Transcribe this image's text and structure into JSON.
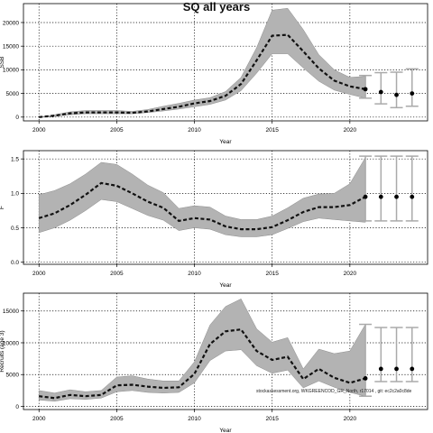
{
  "title": "SQ all years",
  "footnote": "stockassessment.org, WKGREENCOD_GR_North, r17014 , git: ec2c2a0c8de",
  "chart_data": [
    {
      "type": "line",
      "x": [
        2000,
        2001,
        2002,
        2003,
        2004,
        2005,
        2006,
        2007,
        2008,
        2009,
        2010,
        2011,
        2012,
        2013,
        2014,
        2015,
        2016,
        2017,
        2018,
        2019,
        2020,
        2021
      ],
      "series": [
        {
          "values": [
            0,
            300,
            800,
            1000,
            1000,
            1000,
            900,
            1200,
            1700,
            2200,
            2900,
            3400,
            4500,
            7000,
            12000,
            17200,
            17400,
            13900,
            10300,
            7700,
            6500,
            5900
          ],
          "lower": [
            0,
            150,
            500,
            700,
            700,
            700,
            700,
            950,
            1300,
            1700,
            2200,
            2700,
            3600,
            5600,
            9300,
            13400,
            13400,
            10400,
            7600,
            5700,
            4800,
            4000
          ],
          "upper": [
            0,
            500,
            1100,
            1400,
            1400,
            1400,
            1200,
            1600,
            2300,
            2900,
            3600,
            4100,
            5400,
            8400,
            14700,
            22600,
            23000,
            18500,
            13200,
            10000,
            8400,
            8600
          ]
        }
      ],
      "forecast": {
        "x": [
          2021,
          2022,
          2023,
          2024
        ],
        "values": [
          5900,
          5300,
          4700,
          5000
        ],
        "lower": [
          4000,
          2800,
          2000,
          2300
        ],
        "upper": [
          8800,
          9400,
          9500,
          10200
        ]
      },
      "ylim": [
        -800,
        24000
      ],
      "xlim": [
        1999,
        2025
      ],
      "yticks": [
        0,
        5000,
        10000,
        15000,
        20000
      ],
      "ytick_labels": [
        "0",
        "5000",
        "10000",
        "15000",
        "20000"
      ],
      "xticks": [
        2000,
        2005,
        2010,
        2015,
        2020
      ],
      "xtick_labels": [
        "2000",
        "2005",
        "2010",
        "2015",
        "2020"
      ],
      "xlabel": "Year",
      "ylabel": "SSB",
      "grid": true
    },
    {
      "type": "line",
      "x": [
        2000,
        2001,
        2002,
        2003,
        2004,
        2005,
        2006,
        2007,
        2008,
        2009,
        2010,
        2011,
        2012,
        2013,
        2014,
        2015,
        2016,
        2017,
        2018,
        2019,
        2020,
        2021
      ],
      "series": [
        {
          "values": [
            0.64,
            0.71,
            0.83,
            0.98,
            1.15,
            1.11,
            1.0,
            0.88,
            0.79,
            0.6,
            0.64,
            0.62,
            0.52,
            0.48,
            0.48,
            0.51,
            0.61,
            0.73,
            0.8,
            0.8,
            0.83,
            0.95
          ],
          "lower": [
            0.43,
            0.5,
            0.61,
            0.75,
            0.91,
            0.88,
            0.78,
            0.68,
            0.61,
            0.46,
            0.5,
            0.48,
            0.4,
            0.37,
            0.37,
            0.4,
            0.49,
            0.59,
            0.64,
            0.62,
            0.6,
            0.58
          ],
          "upper": [
            0.98,
            1.04,
            1.14,
            1.28,
            1.45,
            1.42,
            1.28,
            1.12,
            1.01,
            0.78,
            0.82,
            0.8,
            0.67,
            0.62,
            0.62,
            0.67,
            0.79,
            0.93,
            0.99,
            1.0,
            1.14,
            1.52
          ]
        }
      ],
      "forecast": {
        "x": [
          2021,
          2022,
          2023,
          2024
        ],
        "values": [
          0.95,
          0.95,
          0.95,
          0.95
        ],
        "lower": [
          0.6,
          0.6,
          0.6,
          0.6
        ],
        "upper": [
          1.54,
          1.54,
          1.54,
          1.54
        ]
      },
      "ylim": [
        -0.03,
        1.62
      ],
      "xlim": [
        1999,
        2025
      ],
      "yticks": [
        0.0,
        0.5,
        1.0,
        1.5
      ],
      "ytick_labels": [
        "0.0",
        "0.5",
        "1.0",
        "1.5"
      ],
      "xticks": [
        2000,
        2005,
        2010,
        2015,
        2020
      ],
      "xtick_labels": [
        "2000",
        "2005",
        "2010",
        "2015",
        "2020"
      ],
      "xlabel": "Year",
      "ylabel": "F",
      "grid": true
    },
    {
      "type": "line",
      "x": [
        2000,
        2001,
        2002,
        2003,
        2004,
        2005,
        2006,
        2007,
        2008,
        2009,
        2010,
        2011,
        2012,
        2013,
        2014,
        2015,
        2016,
        2017,
        2018,
        2019,
        2020,
        2021
      ],
      "series": [
        {
          "values": [
            1600,
            1300,
            1800,
            1600,
            1800,
            3300,
            3400,
            3100,
            2900,
            3000,
            5100,
            9800,
            11800,
            12100,
            8700,
            7300,
            7800,
            4300,
            5900,
            4500,
            3700,
            4400
          ],
          "lower": [
            1000,
            800,
            1200,
            1100,
            1300,
            2300,
            2500,
            2200,
            2100,
            2200,
            3700,
            7200,
            8700,
            8900,
            6400,
            5200,
            5700,
            2900,
            4000,
            3000,
            2200,
            1600
          ],
          "upper": [
            2500,
            2100,
            2600,
            2300,
            2500,
            4600,
            4800,
            4300,
            4000,
            4000,
            7000,
            12800,
            15700,
            16900,
            12200,
            10100,
            10800,
            5900,
            9000,
            8300,
            8700,
            12900
          ]
        }
      ],
      "forecast": {
        "x": [
          2021,
          2022,
          2023,
          2024
        ],
        "values": [
          4400,
          5900,
          5900,
          5900
        ],
        "lower": [
          1600,
          3900,
          3900,
          3900
        ],
        "upper": [
          12900,
          12400,
          12400,
          12400
        ]
      },
      "ylim": [
        -500,
        17800
      ],
      "xlim": [
        1999,
        2025
      ],
      "yticks": [
        0,
        5000,
        10000,
        15000
      ],
      "ytick_labels": [
        "0",
        "5000",
        "10000",
        "15000"
      ],
      "xticks": [
        2000,
        2005,
        2010,
        2015,
        2020
      ],
      "xtick_labels": [
        "2000",
        "2005",
        "2010",
        "2015",
        "2020"
      ],
      "xlabel": "Year",
      "ylabel": "Recruits (age 3)",
      "grid": true
    }
  ]
}
